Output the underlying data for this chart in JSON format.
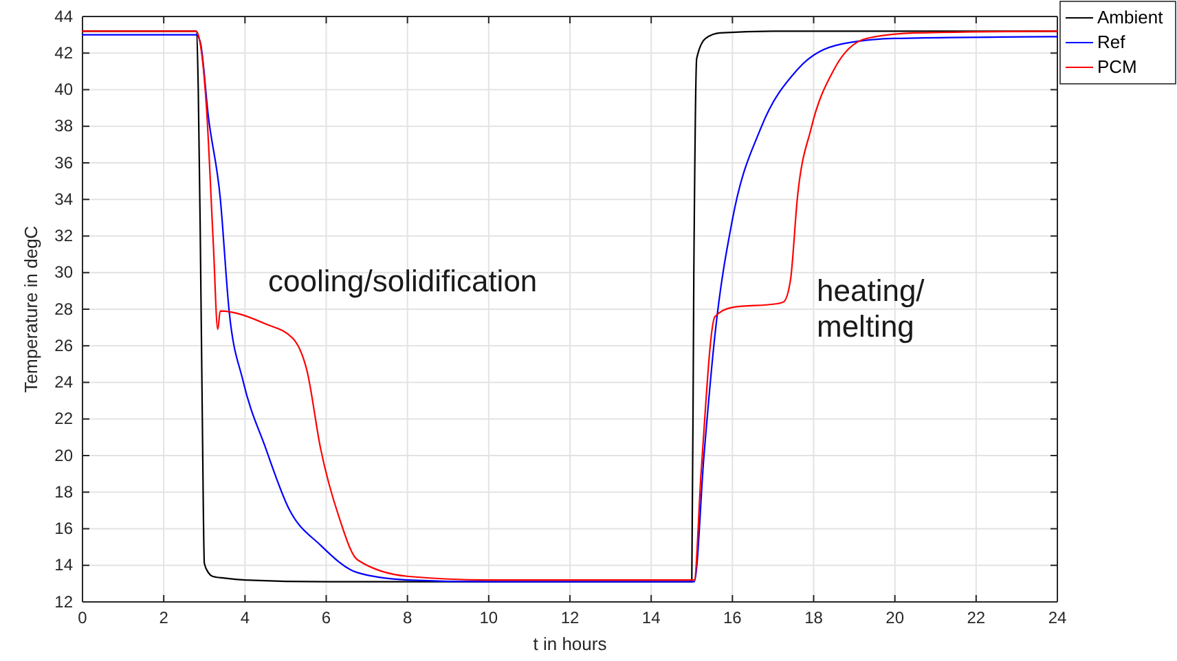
{
  "chart_data": {
    "type": "line",
    "xlabel": "t in hours",
    "ylabel": "Temperature in degC",
    "xlim": [
      0,
      24
    ],
    "ylim": [
      12,
      44
    ],
    "xticks": [
      0,
      2,
      4,
      6,
      8,
      10,
      12,
      14,
      16,
      18,
      20,
      22,
      24
    ],
    "yticks": [
      12,
      14,
      16,
      18,
      20,
      22,
      24,
      26,
      28,
      30,
      32,
      34,
      36,
      38,
      40,
      42,
      44
    ],
    "grid": true,
    "legend": "top right",
    "line_style": "solid",
    "marker": "none",
    "series": [
      {
        "name": "Ambient",
        "color": "#000000",
        "x": [
          0,
          2.8,
          2.85,
          2.9,
          2.95,
          3.0,
          3.1,
          3.2,
          3.5,
          4,
          6,
          10,
          15.0,
          15.05,
          15.12,
          15.34,
          15.7,
          17,
          20,
          24
        ],
        "values": [
          43.2,
          43.2,
          40,
          32,
          22,
          14.1,
          13.6,
          13.4,
          13.3,
          13.2,
          13.1,
          13.1,
          13.1,
          30,
          41.7,
          42.8,
          43.1,
          43.2,
          43.2,
          43.2
        ]
      },
      {
        "name": "Ref",
        "color": "#0000ff",
        "x": [
          0,
          2.8,
          2.9,
          3.1,
          3.39,
          3.61,
          3.95,
          4.51,
          5.08,
          5.86,
          6.77,
          8,
          10,
          15.0,
          15.06,
          15.3,
          15.57,
          16.0,
          16.7,
          17.6,
          18.7,
          20,
          24
        ],
        "values": [
          43.0,
          43.0,
          42.6,
          38.5,
          34.1,
          27.9,
          24.1,
          20.4,
          17.1,
          15.1,
          13.6,
          13.2,
          13.1,
          13.1,
          13.1,
          20,
          26.6,
          32.9,
          37.9,
          41.1,
          42.5,
          42.8,
          42.9
        ]
      },
      {
        "name": "PCM",
        "color": "#ff0000",
        "x": [
          0,
          2.8,
          2.9,
          3.05,
          3.22,
          3.33,
          3.39,
          4.5,
          5.18,
          5.53,
          5.86,
          6.32,
          6.77,
          8,
          10,
          15.0,
          15.06,
          15.23,
          15.57,
          16.0,
          17.1,
          17.26,
          17.43,
          17.6,
          17.94,
          18.5,
          19.3,
          20.5,
          24
        ],
        "values": [
          43.2,
          43.2,
          42.5,
          39.1,
          31.6,
          26.9,
          27.9,
          27.2,
          26.4,
          24.6,
          20.4,
          16.6,
          14.3,
          13.4,
          13.2,
          13.2,
          13.2,
          19.1,
          27.6,
          28.1,
          28.3,
          28.4,
          29.6,
          34.1,
          37.9,
          41.1,
          42.8,
          43.1,
          43.2
        ]
      }
    ],
    "annotations": [
      "cooling/solidification",
      "heating/\nmelting"
    ]
  }
}
